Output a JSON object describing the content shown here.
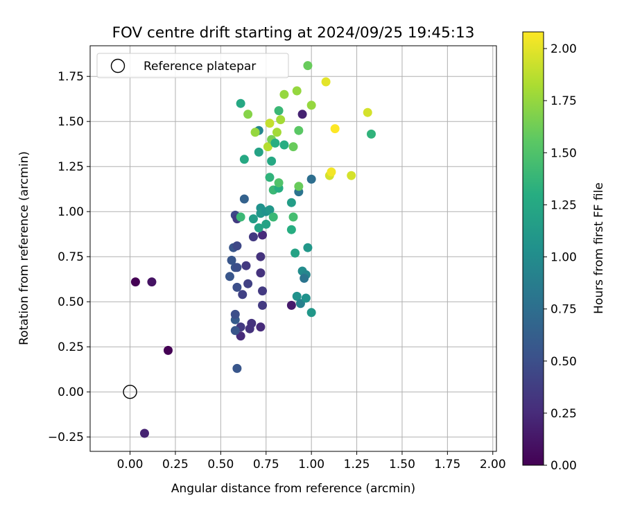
{
  "chart_data": {
    "type": "scatter",
    "title": "FOV centre drift starting at 2024/09/25 19:45:13",
    "xlabel": "Angular distance from reference (arcmin)",
    "ylabel": "Rotation from reference (arcmin)",
    "xlim": [
      -0.22,
      2.02
    ],
    "ylim": [
      -0.33,
      1.92
    ],
    "xticks": [
      0.0,
      0.25,
      0.5,
      0.75,
      1.0,
      1.25,
      1.5,
      1.75,
      2.0
    ],
    "xtick_labels": [
      "0.00",
      "0.25",
      "0.50",
      "0.75",
      "1.00",
      "1.25",
      "1.50",
      "1.75",
      "2.00"
    ],
    "yticks": [
      -0.25,
      0.0,
      0.25,
      0.5,
      0.75,
      1.0,
      1.25,
      1.5,
      1.75
    ],
    "ytick_labels": [
      "−0.25",
      "0.00",
      "0.25",
      "0.50",
      "0.75",
      "1.00",
      "1.25",
      "1.50",
      "1.75"
    ],
    "grid": true,
    "legend": {
      "position": "top-left",
      "label": "Reference platepar",
      "marker": "open-circle"
    },
    "reference_point": {
      "x": 0.0,
      "y": 0.0
    },
    "colorbar": {
      "label": "Hours from first FF file",
      "colormap": "viridis",
      "range": [
        0.0,
        2.08
      ],
      "ticks": [
        0.0,
        0.25,
        0.5,
        0.75,
        1.0,
        1.25,
        1.5,
        1.75,
        2.0
      ],
      "tick_labels": [
        "0.00",
        "0.25",
        "0.50",
        "0.75",
        "1.00",
        "1.25",
        "1.50",
        "1.75",
        "2.00"
      ]
    },
    "points": [
      {
        "x": 0.03,
        "y": 0.61,
        "c": 0.0
      },
      {
        "x": 0.12,
        "y": 0.61,
        "c": 0.1
      },
      {
        "x": 0.21,
        "y": 0.23,
        "c": 0.0
      },
      {
        "x": 0.08,
        "y": -0.23,
        "c": 0.2
      },
      {
        "x": 0.59,
        "y": 0.13,
        "c": 0.55
      },
      {
        "x": 0.61,
        "y": 0.31,
        "c": 0.25
      },
      {
        "x": 0.61,
        "y": 0.36,
        "c": 0.35
      },
      {
        "x": 0.66,
        "y": 0.35,
        "c": 0.3
      },
      {
        "x": 0.67,
        "y": 0.38,
        "c": 0.3
      },
      {
        "x": 0.72,
        "y": 0.36,
        "c": 0.25
      },
      {
        "x": 0.58,
        "y": 0.34,
        "c": 0.55
      },
      {
        "x": 0.58,
        "y": 0.4,
        "c": 0.6
      },
      {
        "x": 0.58,
        "y": 0.43,
        "c": 0.5
      },
      {
        "x": 0.73,
        "y": 0.48,
        "c": 0.35
      },
      {
        "x": 0.62,
        "y": 0.54,
        "c": 0.4
      },
      {
        "x": 0.59,
        "y": 0.58,
        "c": 0.5
      },
      {
        "x": 0.65,
        "y": 0.6,
        "c": 0.4
      },
      {
        "x": 0.73,
        "y": 0.56,
        "c": 0.35
      },
      {
        "x": 0.55,
        "y": 0.64,
        "c": 0.55
      },
      {
        "x": 0.58,
        "y": 0.69,
        "c": 0.55
      },
      {
        "x": 0.59,
        "y": 0.69,
        "c": 0.5
      },
      {
        "x": 0.64,
        "y": 0.7,
        "c": 0.35
      },
      {
        "x": 0.72,
        "y": 0.66,
        "c": 0.3
      },
      {
        "x": 0.72,
        "y": 0.75,
        "c": 0.3
      },
      {
        "x": 0.56,
        "y": 0.73,
        "c": 0.55
      },
      {
        "x": 0.57,
        "y": 0.8,
        "c": 0.55
      },
      {
        "x": 0.59,
        "y": 0.81,
        "c": 0.45
      },
      {
        "x": 0.68,
        "y": 0.86,
        "c": 0.35
      },
      {
        "x": 0.73,
        "y": 0.87,
        "c": 0.25
      },
      {
        "x": 0.58,
        "y": 0.98,
        "c": 0.45
      },
      {
        "x": 0.59,
        "y": 0.96,
        "c": 0.35
      },
      {
        "x": 0.61,
        "y": 0.97,
        "c": 1.4
      },
      {
        "x": 0.63,
        "y": 1.07,
        "c": 0.65
      },
      {
        "x": 0.68,
        "y": 0.96,
        "c": 1.15
      },
      {
        "x": 0.71,
        "y": 0.91,
        "c": 1.2
      },
      {
        "x": 0.72,
        "y": 1.02,
        "c": 1.05
      },
      {
        "x": 0.72,
        "y": 0.99,
        "c": 1.1
      },
      {
        "x": 0.75,
        "y": 0.93,
        "c": 1.2
      },
      {
        "x": 0.75,
        "y": 1.0,
        "c": 1.05
      },
      {
        "x": 0.77,
        "y": 1.01,
        "c": 1.1
      },
      {
        "x": 0.79,
        "y": 0.97,
        "c": 1.4
      },
      {
        "x": 0.89,
        "y": 0.9,
        "c": 1.3
      },
      {
        "x": 0.9,
        "y": 0.97,
        "c": 1.45
      },
      {
        "x": 0.89,
        "y": 1.05,
        "c": 1.15
      },
      {
        "x": 0.93,
        "y": 1.11,
        "c": 0.8
      },
      {
        "x": 0.91,
        "y": 0.77,
        "c": 1.2
      },
      {
        "x": 0.98,
        "y": 0.8,
        "c": 1.1
      },
      {
        "x": 0.95,
        "y": 0.67,
        "c": 1.0
      },
      {
        "x": 0.97,
        "y": 0.65,
        "c": 0.95
      },
      {
        "x": 0.96,
        "y": 0.63,
        "c": 0.8
      },
      {
        "x": 0.92,
        "y": 0.53,
        "c": 1.05
      },
      {
        "x": 0.94,
        "y": 0.49,
        "c": 0.9
      },
      {
        "x": 0.97,
        "y": 0.52,
        "c": 1.05
      },
      {
        "x": 0.89,
        "y": 0.48,
        "c": 0.15
      },
      {
        "x": 1.0,
        "y": 0.44,
        "c": 1.1
      },
      {
        "x": 1.0,
        "y": 1.18,
        "c": 0.75
      },
      {
        "x": 0.77,
        "y": 1.19,
        "c": 1.35
      },
      {
        "x": 0.79,
        "y": 1.12,
        "c": 1.4
      },
      {
        "x": 0.82,
        "y": 1.13,
        "c": 1.3
      },
      {
        "x": 0.82,
        "y": 1.16,
        "c": 1.5
      },
      {
        "x": 0.93,
        "y": 1.14,
        "c": 1.6
      },
      {
        "x": 0.63,
        "y": 1.29,
        "c": 1.25
      },
      {
        "x": 0.71,
        "y": 1.33,
        "c": 1.2
      },
      {
        "x": 0.78,
        "y": 1.28,
        "c": 1.25
      },
      {
        "x": 0.71,
        "y": 1.45,
        "c": 0.95
      },
      {
        "x": 0.69,
        "y": 1.44,
        "c": 1.75
      },
      {
        "x": 0.76,
        "y": 1.36,
        "c": 1.85
      },
      {
        "x": 0.78,
        "y": 1.4,
        "c": 1.65
      },
      {
        "x": 0.8,
        "y": 1.38,
        "c": 1.3
      },
      {
        "x": 0.81,
        "y": 1.44,
        "c": 1.8
      },
      {
        "x": 0.85,
        "y": 1.37,
        "c": 1.3
      },
      {
        "x": 0.9,
        "y": 1.36,
        "c": 1.6
      },
      {
        "x": 0.93,
        "y": 1.45,
        "c": 1.55
      },
      {
        "x": 0.77,
        "y": 1.49,
        "c": 1.9
      },
      {
        "x": 0.83,
        "y": 1.51,
        "c": 1.8
      },
      {
        "x": 0.82,
        "y": 1.56,
        "c": 1.4
      },
      {
        "x": 0.65,
        "y": 1.54,
        "c": 1.7
      },
      {
        "x": 0.61,
        "y": 1.6,
        "c": 1.25
      },
      {
        "x": 0.85,
        "y": 1.65,
        "c": 1.75
      },
      {
        "x": 0.92,
        "y": 1.67,
        "c": 1.75
      },
      {
        "x": 0.95,
        "y": 1.54,
        "c": 0.2
      },
      {
        "x": 1.0,
        "y": 1.59,
        "c": 1.75
      },
      {
        "x": 0.98,
        "y": 1.81,
        "c": 1.6
      },
      {
        "x": 1.08,
        "y": 1.72,
        "c": 2.0
      },
      {
        "x": 1.13,
        "y": 1.46,
        "c": 2.08
      },
      {
        "x": 1.1,
        "y": 1.2,
        "c": 1.95
      },
      {
        "x": 1.11,
        "y": 1.22,
        "c": 2.05
      },
      {
        "x": 1.22,
        "y": 1.2,
        "c": 1.95
      },
      {
        "x": 1.31,
        "y": 1.55,
        "c": 1.95
      },
      {
        "x": 1.33,
        "y": 1.43,
        "c": 1.35
      }
    ]
  }
}
